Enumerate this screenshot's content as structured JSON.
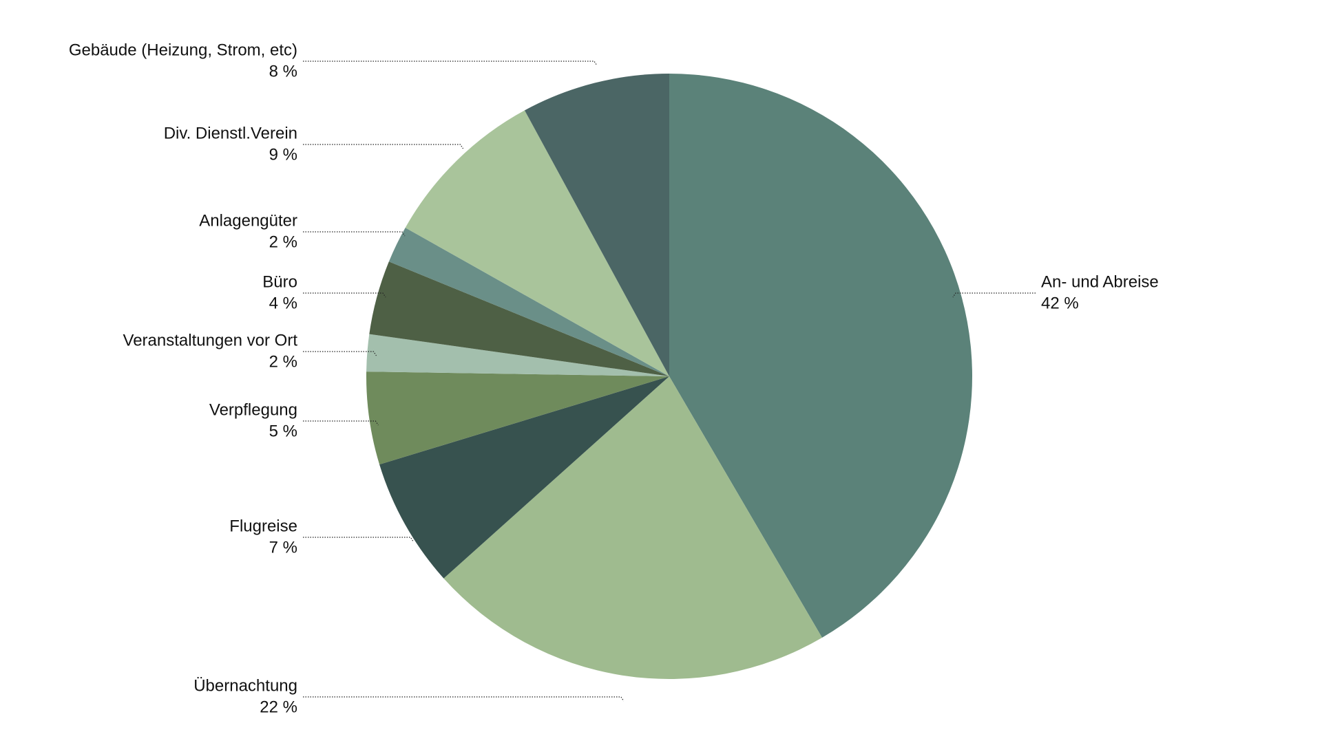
{
  "chart_data": {
    "type": "pie",
    "categories": [
      "An- und Abreise",
      "Übernachtung",
      "Flugreise",
      "Verpflegung",
      "Veranstaltungen vor Ort",
      "Büro",
      "Anlagengüter",
      "Div. Dienstl.Verein",
      "Gebäude (Heizung, Strom, etc)"
    ],
    "values": [
      42,
      22,
      7,
      5,
      2,
      4,
      2,
      9,
      8
    ],
    "value_labels": [
      "42 %",
      "22 %",
      "7 %",
      "5 %",
      "2 %",
      "4 %",
      "2 %",
      "9 %",
      "8 %"
    ],
    "colors": [
      "#5b8279",
      "#9fbb8f",
      "#37524f",
      "#6f8b5c",
      "#a3bfad",
      "#4e6045",
      "#6a8f88",
      "#a9c49b",
      "#4b6665"
    ]
  }
}
